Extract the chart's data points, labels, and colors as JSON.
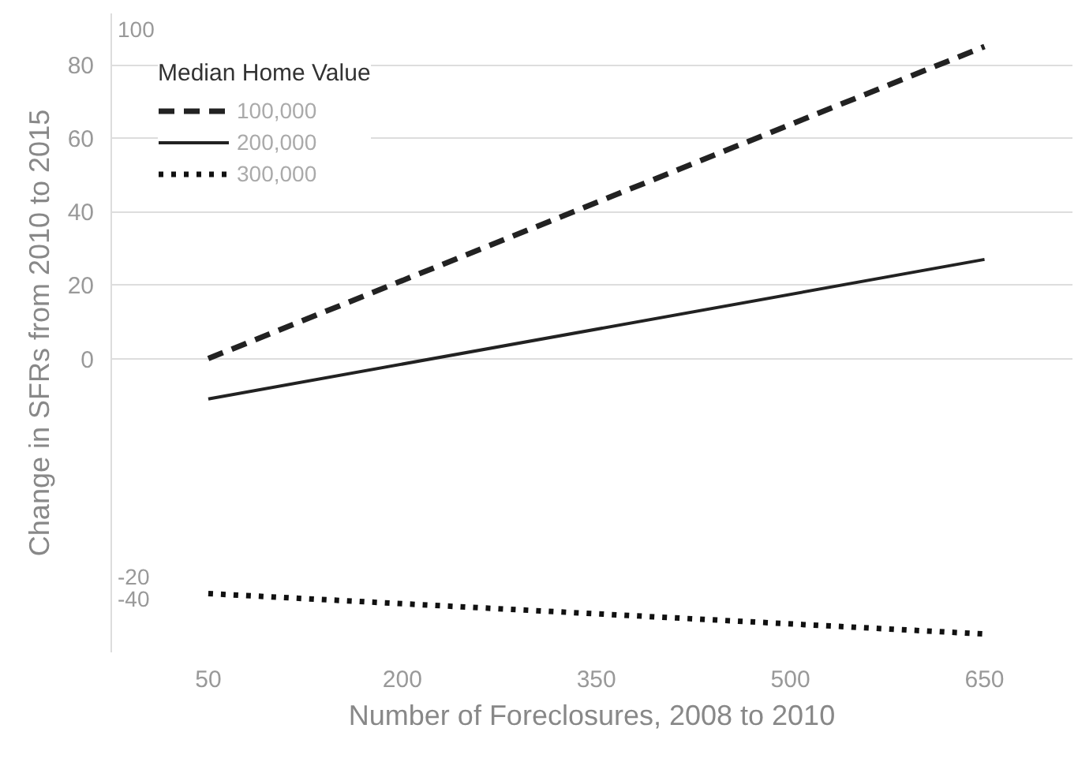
{
  "chart_data": {
    "type": "line",
    "xlabel": "Number of Foreclosures, 2008 to 2010",
    "ylabel": "Change in SFRs from 2010 to 2015",
    "legend_title": "Median Home Value",
    "x": [
      50,
      650
    ],
    "series": [
      {
        "name": "100,000",
        "color": "#222222",
        "line_style": "dashed",
        "values": [
          0,
          85
        ]
      },
      {
        "name": "200,000",
        "color": "#222222",
        "line_style": "solid",
        "values": [
          -11,
          27
        ]
      },
      {
        "name": "300,000",
        "color": "#111111",
        "line_style": "dotted",
        "values": [
          -64,
          -75
        ]
      }
    ],
    "xlim": [
      -25,
      718
    ],
    "xticks": [
      50,
      200,
      350,
      500,
      650
    ],
    "ylim": [
      -80,
      94
    ],
    "yticks": [
      80,
      60,
      40,
      20,
      0
    ],
    "annotations": [
      "100",
      "-20",
      "-40"
    ],
    "grid": "y",
    "legend": "top left",
    "marker": "none"
  }
}
